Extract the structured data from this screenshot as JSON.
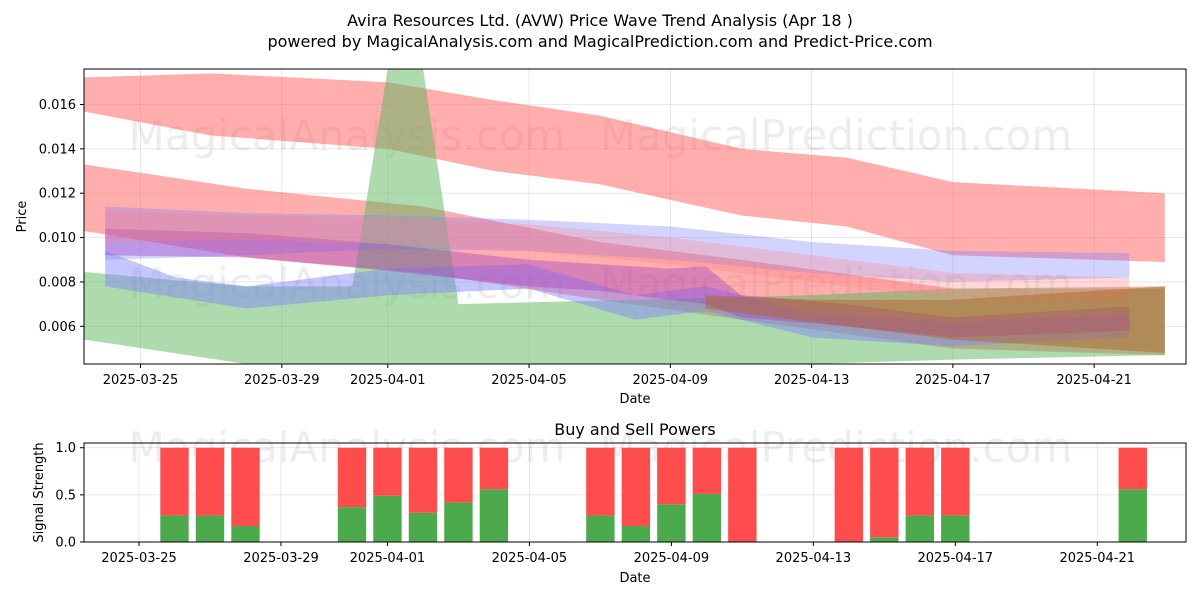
{
  "header": {
    "title": "Avira Resources Ltd. (AVW) Price Wave Trend Analysis (Apr 18 )",
    "subtitle": "powered by MagicalAnalysis.com and MagicalPrediction.com and Predict-Price.com"
  },
  "watermarks": [
    "MagicalAnalysis.com",
    "MagicalPrediction.com"
  ],
  "chart_data": [
    {
      "type": "area",
      "title": "",
      "xlabel": "Date",
      "ylabel": "Price",
      "x_range": [
        "2025-03-23",
        "2025-04-23"
      ],
      "ylim": [
        0.0043,
        0.0176
      ],
      "x_ticks": [
        "2025-03-25",
        "2025-03-29",
        "2025-04-01",
        "2025-04-05",
        "2025-04-09",
        "2025-04-13",
        "2025-04-17",
        "2025-04-21"
      ],
      "y_ticks": [
        "0.006",
        "0.008",
        "0.010",
        "0.012",
        "0.014",
        "0.016"
      ],
      "grid": true,
      "series": [
        {
          "color": "#ff5c5c",
          "opacity": 0.5,
          "points": [
            [
              "2025-03-23",
              0.0172,
              0.0158
            ],
            [
              "2025-03-27",
              0.0174,
              0.0146
            ],
            [
              "2025-04-01",
              0.017,
              0.014
            ],
            [
              "2025-04-04",
              0.0162,
              0.013
            ],
            [
              "2025-04-07",
              0.0155,
              0.0124
            ],
            [
              "2025-04-11",
              0.014,
              0.011
            ],
            [
              "2025-04-14",
              0.0136,
              0.0105
            ],
            [
              "2025-04-17",
              0.0125,
              0.0092
            ],
            [
              "2025-04-23",
              0.012,
              0.0089
            ]
          ]
        },
        {
          "color": "#ff5c5c",
          "opacity": 0.5,
          "points": [
            [
              "2025-03-23",
              0.0134,
              0.0104
            ],
            [
              "2025-03-28",
              0.0122,
              0.0091
            ],
            [
              "2025-04-02",
              0.0114,
              0.0084
            ],
            [
              "2025-04-07",
              0.0098,
              0.0072
            ],
            [
              "2025-04-11",
              0.009,
              0.0063
            ],
            [
              "2025-04-17",
              0.0077,
              0.005
            ],
            [
              "2025-04-23",
              0.0078,
              0.0047
            ]
          ]
        },
        {
          "color": "#5cb85c",
          "opacity": 0.5,
          "points": [
            [
              "2025-03-23",
              0.0085,
              0.0055
            ],
            [
              "2025-03-28",
              0.0078,
              0.0043
            ],
            [
              "2025-03-31",
              0.0078,
              0.0043
            ],
            [
              "2025-04-01",
              0.0176,
              0.0043
            ],
            [
              "2025-04-02",
              0.0176,
              0.0043
            ],
            [
              "2025-04-03",
              0.007,
              0.0043
            ],
            [
              "2025-04-08",
              0.0072,
              0.0043
            ],
            [
              "2025-04-13",
              0.0074,
              0.0043
            ],
            [
              "2025-04-17",
              0.0077,
              0.0045
            ],
            [
              "2025-04-23",
              0.0077,
              0.0047
            ]
          ]
        },
        {
          "color": "#8080ff",
          "opacity": 0.35,
          "points": [
            [
              "2025-03-24",
              0.0114,
              0.009
            ],
            [
              "2025-03-28",
              0.0111,
              0.0092
            ],
            [
              "2025-04-01",
              0.011,
              0.0095
            ],
            [
              "2025-04-05",
              0.0108,
              0.0094
            ],
            [
              "2025-04-09",
              0.0105,
              0.009
            ],
            [
              "2025-04-13",
              0.0098,
              0.0084
            ],
            [
              "2025-04-17",
              0.0094,
              0.008
            ],
            [
              "2025-04-22",
              0.0093,
              0.0082
            ]
          ]
        },
        {
          "color": "#8080ff",
          "opacity": 0.45,
          "points": [
            [
              "2025-03-24",
              0.0094,
              0.0078
            ],
            [
              "2025-03-26",
              0.0082,
              0.0073
            ],
            [
              "2025-03-28",
              0.0078,
              0.0068
            ],
            [
              "2025-04-01",
              0.0086,
              0.0074
            ],
            [
              "2025-04-05",
              0.0088,
              0.0077
            ],
            [
              "2025-04-08",
              0.0074,
              0.0063
            ],
            [
              "2025-04-10",
              0.0078,
              0.0067
            ],
            [
              "2025-04-13",
              0.0066,
              0.0055
            ],
            [
              "2025-04-17",
              0.0062,
              0.0051
            ],
            [
              "2025-04-22",
              0.0065,
              0.0055
            ]
          ]
        },
        {
          "color": "#a040c0",
          "opacity": 0.4,
          "points": [
            [
              "2025-03-24",
              0.0104,
              0.0092
            ],
            [
              "2025-03-28",
              0.0102,
              0.0091
            ],
            [
              "2025-04-01",
              0.0097,
              0.0085
            ],
            [
              "2025-04-05",
              0.009,
              0.0078
            ],
            [
              "2025-04-07",
              0.0088,
              0.0076
            ],
            [
              "2025-04-09",
              0.0086,
              0.0072
            ],
            [
              "2025-04-10",
              0.0087,
              0.007
            ],
            [
              "2025-04-11",
              0.0074,
              0.0064
            ],
            [
              "2025-04-14",
              0.007,
              0.006
            ],
            [
              "2025-04-17",
              0.0064,
              0.0055
            ],
            [
              "2025-04-22",
              0.0069,
              0.0058
            ]
          ]
        },
        {
          "color": "#ff8080",
          "opacity": 0.3,
          "points": [
            [
              "2025-03-24",
              0.0112,
              0.0098
            ],
            [
              "2025-03-28",
              0.011,
              0.0099
            ],
            [
              "2025-04-01",
              0.0109,
              0.0097
            ],
            [
              "2025-04-05",
              0.0106,
              0.0094
            ],
            [
              "2025-04-09",
              0.01,
              0.0088
            ],
            [
              "2025-04-13",
              0.0092,
              0.008
            ],
            [
              "2025-04-17",
              0.0084,
              0.0072
            ],
            [
              "2025-04-22",
              0.0082,
              0.0071
            ]
          ]
        },
        {
          "color": "#b4642a",
          "opacity": 0.5,
          "points": [
            [
              "2025-04-10",
              0.0074,
              0.0068
            ],
            [
              "2025-04-13",
              0.0072,
              0.0062
            ],
            [
              "2025-04-17",
              0.0072,
              0.0054
            ],
            [
              "2025-04-23",
              0.0078,
              0.0048
            ]
          ]
        }
      ]
    },
    {
      "type": "bar",
      "title": "Buy and Sell Powers",
      "xlabel": "Date",
      "ylabel": "Signal Strength",
      "ylim": [
        0,
        1.05
      ],
      "y_ticks": [
        "0.0",
        "0.5",
        "1.0"
      ],
      "x_ticks": [
        "2025-03-25",
        "2025-03-29",
        "2025-04-01",
        "2025-04-05",
        "2025-04-09",
        "2025-04-13",
        "2025-04-17",
        "2025-04-21"
      ],
      "grid": true,
      "buy_color": "#4caa4c",
      "sell_color": "#ff4c4c",
      "categories": [
        "2025-03-26",
        "2025-03-27",
        "2025-03-28",
        "2025-03-31",
        "2025-04-01",
        "2025-04-02",
        "2025-04-03",
        "2025-04-04",
        "2025-04-07",
        "2025-04-08",
        "2025-04-09",
        "2025-04-10",
        "2025-04-11",
        "2025-04-14",
        "2025-04-15",
        "2025-04-16",
        "2025-04-17",
        "2025-04-22"
      ],
      "buy": [
        0.28,
        0.28,
        0.17,
        0.37,
        0.49,
        0.31,
        0.42,
        0.56,
        0.28,
        0.17,
        0.4,
        0.51,
        0.0,
        0.0,
        0.05,
        0.28,
        0.28,
        0.56
      ],
      "sell": [
        0.72,
        0.72,
        0.83,
        0.63,
        0.51,
        0.69,
        0.58,
        0.44,
        0.72,
        0.83,
        0.6,
        0.49,
        1.0,
        1.0,
        0.95,
        0.72,
        0.72,
        0.44
      ]
    }
  ]
}
